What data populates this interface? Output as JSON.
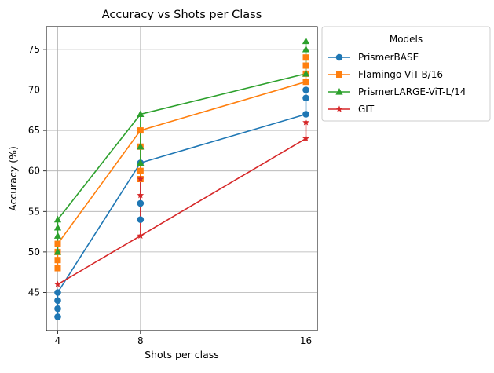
{
  "chart_data": {
    "type": "line",
    "title": "Accuracy vs Shots per Class",
    "xlabel": "Shots per class",
    "ylabel": "Accuracy (%)",
    "x_ticks": [
      4,
      8,
      16
    ],
    "y_ticks": [
      45,
      50,
      55,
      60,
      65,
      70,
      75
    ],
    "xlim": [
      3.45,
      16.55
    ],
    "ylim": [
      40.3,
      77.8
    ],
    "grid": true,
    "legend": {
      "title": "Models",
      "placement": "outside upper right"
    },
    "series": [
      {
        "name": "PrismerBASE",
        "color": "#1f77b4",
        "marker": "circle",
        "x": [
          4,
          8,
          16
        ],
        "y": [
          45,
          61,
          67
        ],
        "points": [
          {
            "x": 4,
            "y": 42
          },
          {
            "x": 4,
            "y": 43
          },
          {
            "x": 4,
            "y": 44
          },
          {
            "x": 4,
            "y": 45
          },
          {
            "x": 8,
            "y": 54
          },
          {
            "x": 8,
            "y": 56
          },
          {
            "x": 8,
            "y": 61
          },
          {
            "x": 16,
            "y": 67
          },
          {
            "x": 16,
            "y": 69
          },
          {
            "x": 16,
            "y": 70
          }
        ]
      },
      {
        "name": "Flamingo-ViT-B/16",
        "color": "#ff7f0e",
        "marker": "square",
        "x": [
          4,
          8,
          16
        ],
        "y": [
          51,
          65,
          71
        ],
        "points": [
          {
            "x": 4,
            "y": 48
          },
          {
            "x": 4,
            "y": 49
          },
          {
            "x": 4,
            "y": 50
          },
          {
            "x": 4,
            "y": 51
          },
          {
            "x": 8,
            "y": 59
          },
          {
            "x": 8,
            "y": 60
          },
          {
            "x": 8,
            "y": 63
          },
          {
            "x": 8,
            "y": 65
          },
          {
            "x": 16,
            "y": 71
          },
          {
            "x": 16,
            "y": 72
          },
          {
            "x": 16,
            "y": 73
          },
          {
            "x": 16,
            "y": 74
          }
        ]
      },
      {
        "name": "PrismerLARGE-ViT-L/14",
        "color": "#2ca02c",
        "marker": "triangle",
        "x": [
          4,
          8,
          16
        ],
        "y": [
          54,
          67,
          72
        ],
        "points": [
          {
            "x": 4,
            "y": 50
          },
          {
            "x": 4,
            "y": 52
          },
          {
            "x": 4,
            "y": 53
          },
          {
            "x": 4,
            "y": 54
          },
          {
            "x": 8,
            "y": 61
          },
          {
            "x": 8,
            "y": 63
          },
          {
            "x": 8,
            "y": 67
          },
          {
            "x": 16,
            "y": 72
          },
          {
            "x": 16,
            "y": 75
          },
          {
            "x": 16,
            "y": 76
          }
        ]
      },
      {
        "name": "GIT",
        "color": "#d62728",
        "marker": "star",
        "x": [
          4,
          8,
          16
        ],
        "y": [
          46,
          52,
          64
        ],
        "points": [
          {
            "x": 4,
            "y": 46
          },
          {
            "x": 8,
            "y": 52
          },
          {
            "x": 8,
            "y": 57
          },
          {
            "x": 8,
            "y": 59
          },
          {
            "x": 16,
            "y": 64
          },
          {
            "x": 16,
            "y": 66
          }
        ]
      }
    ]
  }
}
